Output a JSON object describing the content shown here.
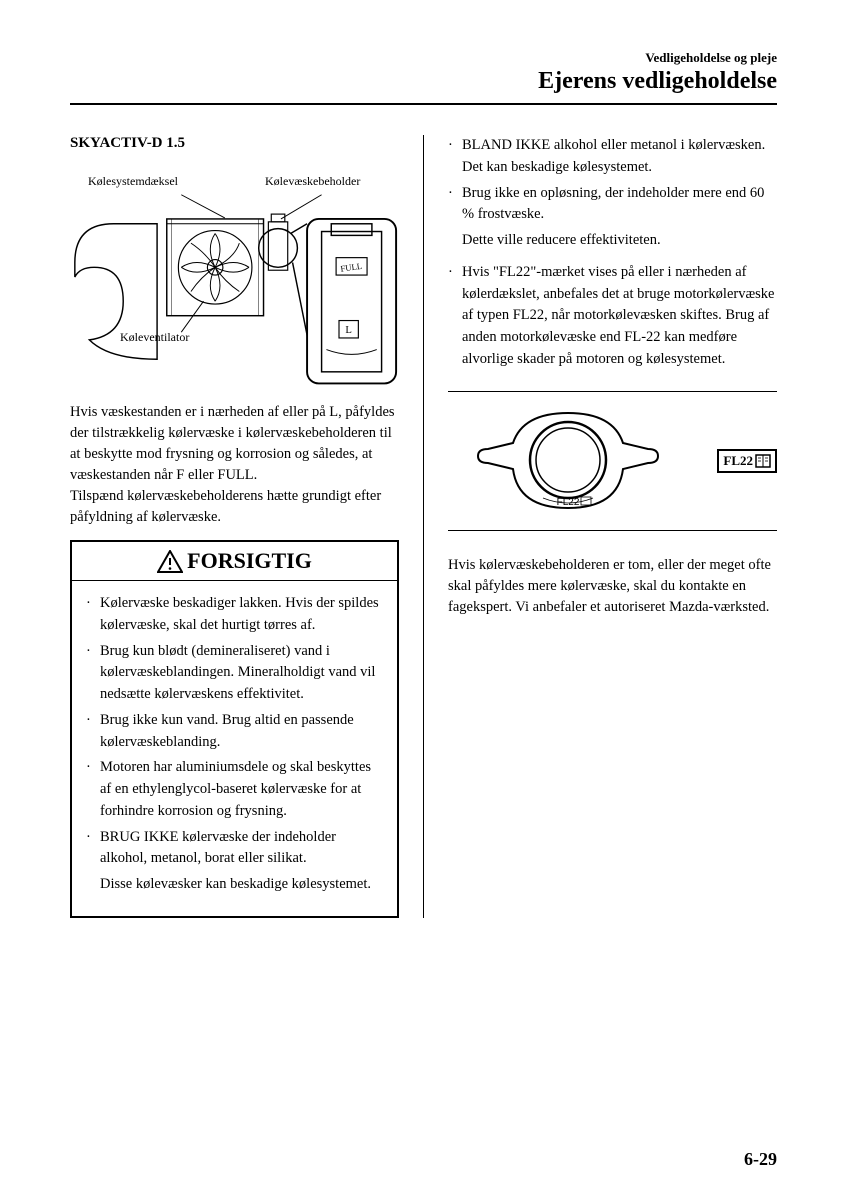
{
  "header": {
    "small": "Vedligeholdelse og pleje",
    "large": "Ejerens vedligeholdelse"
  },
  "left": {
    "heading": "SKYACTIV-D 1.5",
    "labels": {
      "cover": "Kølesystemdæksel",
      "reservoir": "Kølevæskebeholder",
      "fan": "Køleventilator",
      "full": "FULL",
      "low": "L"
    },
    "paragraph": "Hvis væskestanden er i nærheden af eller på L, påfyldes der tilstrækkelig kølervæske i kølervæskebeholderen til at beskytte mod frysning og korrosion og således, at væskestanden når F eller FULL.\nTilspænd kølervæskebeholderens hætte grundigt efter påfyldning af kølervæske.",
    "cautionTitle": "FORSIGTIG",
    "cautions": [
      {
        "text": "Kølervæske beskadiger lakken. Hvis der spildes kølervæske, skal det hurtigt tørres af."
      },
      {
        "text": "Brug kun blødt (demineraliseret) vand i kølervæskeblandingen. Mineralholdigt vand vil nedsætte kølervæskens effektivitet."
      },
      {
        "text": "Brug ikke kun vand. Brug altid en passende kølervæskeblanding."
      },
      {
        "text": "Motoren har aluminiumsdele og skal beskyttes af en ethylenglycol-baseret kølervæske for at forhindre korrosion og frysning."
      },
      {
        "text": "BRUG IKKE kølervæske der indeholder alkohol, metanol, borat eller silikat.",
        "sub": "Disse kølevæsker kan beskadige kølesystemet."
      }
    ]
  },
  "right": {
    "topBullets": [
      {
        "text": "BLAND IKKE alkohol eller metanol i kølervæsken. Det kan beskadige kølesystemet."
      },
      {
        "text": "Brug ikke en opløsning, der indeholder mere end 60 % frostvæske.",
        "sub": "Dette ville reducere effektiviteten."
      },
      {
        "text": "Hvis \"FL22\"-mærket vises på eller i nærheden af kølerdækslet, anbefales det at bruge motorkølervæske af typen FL22, når motorkølevæsken skiftes. Brug af anden motorkølevæske end FL-22 kan medføre alvorlige skader på motoren og kølesystemet."
      }
    ],
    "capLabel": "FL22",
    "badgeLabel": "FL22",
    "bottomParagraph": "Hvis kølervæskebeholderen er tom, eller der meget ofte skal påfyldes mere kølervæske, skal du kontakte en fagekspert. Vi anbefaler et autoriseret Mazda-værksted."
  },
  "pageNumber": "6-29",
  "colors": {
    "text": "#000000",
    "bg": "#ffffff",
    "border": "#000000"
  }
}
